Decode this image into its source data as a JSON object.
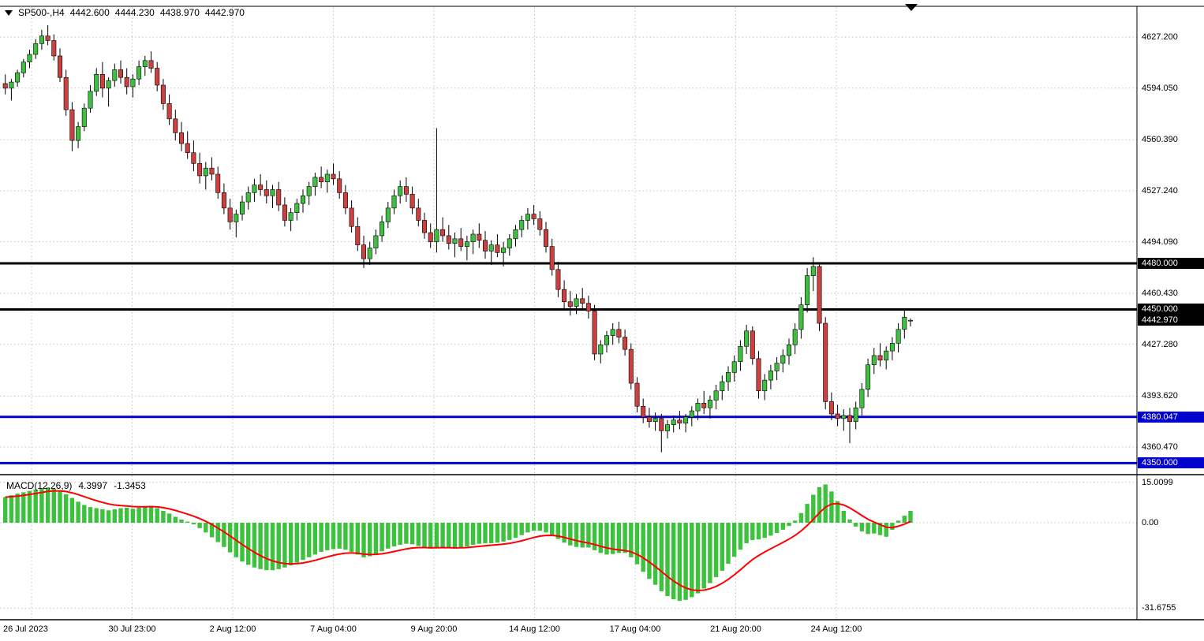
{
  "header": {
    "symbol_tf": "SP500-,H4",
    "open": "4442.600",
    "high": "4444.230",
    "low": "4438.970",
    "close": "4442.970"
  },
  "macd_readout": {
    "label": "MACD(12,26,9)",
    "value": "4.3997",
    "signal": "-1.3453"
  },
  "chart_data": {
    "type": "candlestick",
    "title": "SP500- H4 with MACD(12,26,9)",
    "ylim": [
      4343,
      4647.3
    ],
    "price_ticks": [
      {
        "v": 4627.2,
        "label": "4627.200"
      },
      {
        "v": 4594.05,
        "label": "4594.050"
      },
      {
        "v": 4560.39,
        "label": "4560.390"
      },
      {
        "v": 4527.24,
        "label": "4527.240"
      },
      {
        "v": 4494.09,
        "label": "4494.090"
      },
      {
        "v": 4460.43,
        "label": "4460.430"
      },
      {
        "v": 4427.28,
        "label": "4427.280"
      },
      {
        "v": 4393.62,
        "label": "4393.620"
      },
      {
        "v": 4360.47,
        "label": "4360.470"
      }
    ],
    "levels": [
      {
        "price": 4480.0,
        "label": "4480.000",
        "color": "#000000"
      },
      {
        "price": 4450.0,
        "label": "4450.000",
        "color": "#000000"
      },
      {
        "price": 4380.047,
        "label": "4380.047",
        "color": "#0202ce"
      },
      {
        "price": 4350.0,
        "label": "4350.000",
        "color": "#0202ce"
      }
    ],
    "current_price": {
      "price": 4442.97,
      "label": "4442.970",
      "color": "#000000"
    },
    "time_ticks": [
      {
        "x": 40,
        "label": "26 Jul 2023"
      },
      {
        "x": 167.5,
        "label": "30 Jul 23:00"
      },
      {
        "x": 295,
        "label": "2 Aug 12:00"
      },
      {
        "x": 422.5,
        "label": "7 Aug 04:00"
      },
      {
        "x": 550,
        "label": "9 Aug 20:00"
      },
      {
        "x": 677.5,
        "label": "14 Aug 12:00"
      },
      {
        "x": 805,
        "label": "17 Aug 04:00"
      },
      {
        "x": 932.5,
        "label": "21 Aug 20:00"
      },
      {
        "x": 1060,
        "label": "24 Aug 12:00"
      }
    ],
    "candles": [
      [
        4597,
        4603,
        4590,
        4594
      ],
      [
        4594,
        4600,
        4586,
        4598
      ],
      [
        4598,
        4606,
        4595,
        4604
      ],
      [
        4604,
        4613,
        4601,
        4611
      ],
      [
        4611,
        4619,
        4607,
        4616
      ],
      [
        4616,
        4626,
        4613,
        4623
      ],
      [
        4623,
        4632,
        4619,
        4628
      ],
      [
        4628,
        4635,
        4622,
        4625
      ],
      [
        4625,
        4629,
        4612,
        4615
      ],
      [
        4615,
        4620,
        4598,
        4601
      ],
      [
        4601,
        4606,
        4576,
        4580
      ],
      [
        4580,
        4585,
        4553,
        4560
      ],
      [
        4560,
        4572,
        4555,
        4569
      ],
      [
        4569,
        4584,
        4566,
        4581
      ],
      [
        4581,
        4596,
        4578,
        4592
      ],
      [
        4592,
        4607,
        4589,
        4603
      ],
      [
        4603,
        4611,
        4588,
        4594
      ],
      [
        4594,
        4601,
        4582,
        4599
      ],
      [
        4599,
        4610,
        4595,
        4606
      ],
      [
        4606,
        4612,
        4597,
        4601
      ],
      [
        4601,
        4607,
        4590,
        4595
      ],
      [
        4595,
        4603,
        4588,
        4600
      ],
      [
        4600,
        4612,
        4596,
        4608
      ],
      [
        4608,
        4615,
        4602,
        4612
      ],
      [
        4612,
        4618,
        4604,
        4607
      ],
      [
        4607,
        4611,
        4592,
        4596
      ],
      [
        4596,
        4600,
        4580,
        4584
      ],
      [
        4584,
        4590,
        4570,
        4574
      ],
      [
        4574,
        4580,
        4560,
        4565
      ],
      [
        4565,
        4572,
        4553,
        4558
      ],
      [
        4558,
        4566,
        4548,
        4552
      ],
      [
        4552,
        4560,
        4540,
        4545
      ],
      [
        4545,
        4552,
        4532,
        4537
      ],
      [
        4537,
        4546,
        4528,
        4542
      ],
      [
        4542,
        4549,
        4534,
        4538
      ],
      [
        4538,
        4543,
        4522,
        4526
      ],
      [
        4526,
        4532,
        4512,
        4516
      ],
      [
        4516,
        4522,
        4502,
        4507
      ],
      [
        4507,
        4515,
        4497,
        4512
      ],
      [
        4512,
        4524,
        4508,
        4520
      ],
      [
        4520,
        4530,
        4515,
        4526
      ],
      [
        4526,
        4535,
        4520,
        4531
      ],
      [
        4531,
        4538,
        4524,
        4528
      ],
      [
        4528,
        4534,
        4519,
        4524
      ],
      [
        4524,
        4531,
        4516,
        4528
      ],
      [
        4528,
        4533,
        4514,
        4518
      ],
      [
        4518,
        4523,
        4504,
        4508
      ],
      [
        4508,
        4516,
        4501,
        4513
      ],
      [
        4513,
        4522,
        4508,
        4519
      ],
      [
        4519,
        4528,
        4513,
        4524
      ],
      [
        4524,
        4533,
        4518,
        4530
      ],
      [
        4530,
        4539,
        4524,
        4536
      ],
      [
        4536,
        4543,
        4529,
        4533
      ],
      [
        4533,
        4541,
        4526,
        4538
      ],
      [
        4538,
        4545,
        4531,
        4535
      ],
      [
        4535,
        4540,
        4522,
        4526
      ],
      [
        4526,
        4531,
        4512,
        4516
      ],
      [
        4516,
        4521,
        4500,
        4504
      ],
      [
        4504,
        4510,
        4488,
        4492
      ],
      [
        4492,
        4498,
        4477,
        4483
      ],
      [
        4483,
        4494,
        4479,
        4490
      ],
      [
        4490,
        4502,
        4486,
        4498
      ],
      [
        4498,
        4511,
        4494,
        4507
      ],
      [
        4507,
        4520,
        4503,
        4516
      ],
      [
        4516,
        4528,
        4512,
        4524
      ],
      [
        4524,
        4534,
        4519,
        4530
      ],
      [
        4530,
        4536,
        4520,
        4525
      ],
      [
        4525,
        4530,
        4512,
        4516
      ],
      [
        4516,
        4522,
        4504,
        4508
      ],
      [
        4508,
        4513,
        4496,
        4500
      ],
      [
        4500,
        4506,
        4490,
        4494
      ],
      [
        4494,
        4568,
        4487,
        4502
      ],
      [
        4502,
        4510,
        4494,
        4498
      ],
      [
        4498,
        4505,
        4489,
        4493
      ],
      [
        4493,
        4500,
        4484,
        4496
      ],
      [
        4496,
        4503,
        4488,
        4491
      ],
      [
        4491,
        4498,
        4482,
        4494
      ],
      [
        4494,
        4502,
        4486,
        4499
      ],
      [
        4499,
        4506,
        4490,
        4495
      ],
      [
        4495,
        4501,
        4483,
        4488
      ],
      [
        4488,
        4495,
        4479,
        4492
      ],
      [
        4492,
        4499,
        4484,
        4487
      ],
      [
        4487,
        4494,
        4478,
        4490
      ],
      [
        4490,
        4499,
        4485,
        4496
      ],
      [
        4496,
        4505,
        4491,
        4502
      ],
      [
        4502,
        4511,
        4497,
        4508
      ],
      [
        4508,
        4516,
        4502,
        4512
      ],
      [
        4512,
        4518,
        4505,
        4509
      ],
      [
        4509,
        4514,
        4498,
        4502
      ],
      [
        4502,
        4507,
        4487,
        4491
      ],
      [
        4491,
        4496,
        4472,
        4476
      ],
      [
        4476,
        4481,
        4458,
        4463
      ],
      [
        4463,
        4469,
        4450,
        4455
      ],
      [
        4455,
        4462,
        4446,
        4452
      ],
      [
        4452,
        4460,
        4447,
        4457
      ],
      [
        4457,
        4464,
        4450,
        4454
      ],
      [
        4454,
        4459,
        4444,
        4449
      ],
      [
        4449,
        4453,
        4417,
        4421
      ],
      [
        4421,
        4430,
        4415,
        4427
      ],
      [
        4427,
        4436,
        4422,
        4433
      ],
      [
        4433,
        4441,
        4427,
        4437
      ],
      [
        4437,
        4442,
        4428,
        4432
      ],
      [
        4432,
        4437,
        4420,
        4424
      ],
      [
        4424,
        4428,
        4398,
        4402
      ],
      [
        4402,
        4406,
        4383,
        4387
      ],
      [
        4387,
        4392,
        4376,
        4380
      ],
      [
        4380,
        4386,
        4373,
        4377
      ],
      [
        4377,
        4383,
        4371,
        4379
      ],
      [
        4379,
        4382,
        4357,
        4371
      ],
      [
        4371,
        4378,
        4366,
        4375
      ],
      [
        4375,
        4381,
        4370,
        4378
      ],
      [
        4378,
        4384,
        4372,
        4376
      ],
      [
        4376,
        4382,
        4370,
        4380
      ],
      [
        4380,
        4387,
        4374,
        4384
      ],
      [
        4384,
        4392,
        4378,
        4389
      ],
      [
        4389,
        4397,
        4382,
        4386
      ],
      [
        4386,
        4394,
        4379,
        4391
      ],
      [
        4391,
        4401,
        4385,
        4397
      ],
      [
        4397,
        4407,
        4391,
        4403
      ],
      [
        4403,
        4413,
        4397,
        4409
      ],
      [
        4409,
        4420,
        4403,
        4416
      ],
      [
        4416,
        4430,
        4410,
        4426
      ],
      [
        4426,
        4440,
        4421,
        4436
      ],
      [
        4436,
        4439,
        4414,
        4418
      ],
      [
        4418,
        4423,
        4392,
        4397
      ],
      [
        4397,
        4408,
        4391,
        4404
      ],
      [
        4404,
        4414,
        4398,
        4410
      ],
      [
        4410,
        4419,
        4404,
        4415
      ],
      [
        4415,
        4424,
        4409,
        4420
      ],
      [
        4420,
        4431,
        4414,
        4427
      ],
      [
        4427,
        4441,
        4421,
        4437
      ],
      [
        4437,
        4458,
        4431,
        4453
      ],
      [
        4453,
        4477,
        4448,
        4472
      ],
      [
        4472,
        4484,
        4462,
        4478
      ],
      [
        4478,
        4480,
        4436,
        4441
      ],
      [
        4441,
        4445,
        4385,
        4390
      ],
      [
        4390,
        4396,
        4378,
        4382
      ],
      [
        4382,
        4388,
        4374,
        4379
      ],
      [
        4379,
        4385,
        4371,
        4381
      ],
      [
        4381,
        4386,
        4363,
        4377
      ],
      [
        4377,
        4390,
        4372,
        4386
      ],
      [
        4386,
        4402,
        4381,
        4398
      ],
      [
        4398,
        4418,
        4393,
        4414
      ],
      [
        4414,
        4425,
        4408,
        4420
      ],
      [
        4420,
        4428,
        4413,
        4417
      ],
      [
        4417,
        4426,
        4411,
        4423
      ],
      [
        4423,
        4432,
        4417,
        4428
      ],
      [
        4428,
        4441,
        4422,
        4437
      ],
      [
        4437,
        4450,
        4431,
        4445
      ],
      [
        4442.6,
        4444.23,
        4438.97,
        4442.97
      ]
    ],
    "macd": {
      "params": "12,26,9",
      "last_value": 4.3997,
      "last_signal": -1.3453,
      "ticks": [
        {
          "v": 15.0099,
          "label": "15.0099"
        },
        {
          "v": 0,
          "label": "0.00"
        },
        {
          "v": -31.6755,
          "label": "-31.6755"
        }
      ],
      "hist": [
        9.5,
        10.2,
        10.8,
        11.3,
        11.8,
        12.3,
        12.8,
        13.1,
        12.6,
        11.8,
        10.6,
        9.2,
        7.8,
        6.6,
        5.8,
        5.4,
        5.0,
        4.6,
        5.0,
        5.4,
        5.6,
        5.2,
        5.6,
        6.0,
        6.2,
        5.4,
        4.4,
        3.4,
        2.2,
        1.2,
        0.4,
        -0.6,
        -2.0,
        -3.6,
        -5.4,
        -7.2,
        -9.0,
        -11.0,
        -12.8,
        -14.4,
        -15.6,
        -16.6,
        -17.2,
        -17.6,
        -17.6,
        -17.2,
        -16.6,
        -15.8,
        -14.8,
        -13.8,
        -12.8,
        -11.8,
        -10.8,
        -10.2,
        -9.8,
        -9.6,
        -10.0,
        -10.8,
        -11.8,
        -12.8,
        -12.4,
        -11.6,
        -10.6,
        -9.6,
        -8.8,
        -8.2,
        -7.8,
        -8.0,
        -8.6,
        -9.2,
        -9.6,
        -9.2,
        -9.0,
        -9.4,
        -9.6,
        -9.2,
        -8.8,
        -8.2,
        -7.8,
        -7.6,
        -7.6,
        -7.4,
        -7.0,
        -6.4,
        -5.6,
        -4.6,
        -3.6,
        -3.0,
        -3.0,
        -3.6,
        -4.6,
        -6.0,
        -7.4,
        -8.4,
        -9.0,
        -9.2,
        -9.2,
        -10.2,
        -11.2,
        -11.8,
        -11.6,
        -11.2,
        -11.2,
        -12.8,
        -15.4,
        -18.2,
        -20.8,
        -23.0,
        -25.4,
        -27.2,
        -28.4,
        -29.0,
        -28.6,
        -27.6,
        -26.2,
        -24.4,
        -22.4,
        -20.2,
        -17.8,
        -15.2,
        -12.6,
        -10.0,
        -7.6,
        -6.4,
        -6.2,
        -5.6,
        -4.8,
        -3.8,
        -2.6,
        -1.2,
        0.8,
        3.6,
        7.0,
        10.4,
        13.2,
        14.2,
        11.6,
        8.0,
        4.4,
        1.2,
        -1.4,
        -3.2,
        -4.2,
        -4.0,
        -4.6,
        -5.2,
        -2.6,
        0.8,
        2.6,
        4.4
      ]
    },
    "colors": {
      "up": "#3fbf3f",
      "down": "#cc4040",
      "wick": "#000000",
      "hist": "#3cc23c",
      "signal_line": "#ff0000",
      "grid": "#c4c4c4",
      "frame": "#000000"
    }
  }
}
